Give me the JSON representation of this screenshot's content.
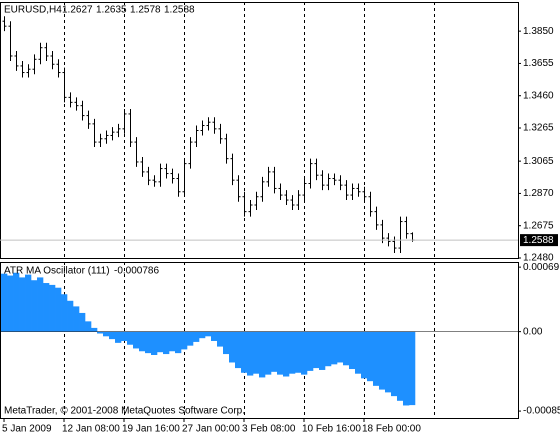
{
  "chart_data": [
    {
      "type": "ohlc",
      "title": "EURUSD,H4",
      "color": "#000000",
      "grid": true,
      "open": [
        1.391,
        1.388,
        1.37,
        1.364,
        1.36,
        1.362,
        1.368,
        1.375,
        1.37,
        1.365,
        1.36,
        1.345,
        1.342,
        1.34,
        1.334,
        1.329,
        1.318,
        1.32,
        1.322,
        1.324,
        1.326,
        1.335,
        1.318,
        1.306,
        1.3,
        1.295,
        1.294,
        1.302,
        1.299,
        1.296,
        1.288,
        1.305,
        1.318,
        1.325,
        1.328,
        1.33,
        1.326,
        1.32,
        1.308,
        1.295,
        1.285,
        1.276,
        1.28,
        1.285,
        1.294,
        1.3,
        1.29,
        1.286,
        1.283,
        1.28,
        1.286,
        1.293,
        1.305,
        1.298,
        1.292,
        1.296,
        1.295,
        1.292,
        1.286,
        1.29,
        1.288,
        1.285,
        1.276,
        1.268,
        1.26,
        1.258,
        1.254,
        1.27,
        1.2627
      ],
      "high": [
        1.394,
        1.391,
        1.373,
        1.367,
        1.365,
        1.371,
        1.378,
        1.378,
        1.373,
        1.368,
        1.363,
        1.348,
        1.345,
        1.343,
        1.337,
        1.332,
        1.323,
        1.325,
        1.327,
        1.329,
        1.338,
        1.338,
        1.321,
        1.309,
        1.303,
        1.298,
        1.305,
        1.305,
        1.302,
        1.299,
        1.308,
        1.321,
        1.328,
        1.331,
        1.333,
        1.333,
        1.329,
        1.323,
        1.311,
        1.298,
        1.288,
        1.283,
        1.288,
        1.297,
        1.303,
        1.303,
        1.293,
        1.289,
        1.286,
        1.289,
        1.296,
        1.308,
        1.308,
        1.301,
        1.299,
        1.299,
        1.298,
        1.295,
        1.293,
        1.293,
        1.291,
        1.288,
        1.279,
        1.271,
        1.263,
        1.261,
        1.273,
        1.273,
        1.2635
      ],
      "low": [
        1.385,
        1.367,
        1.361,
        1.357,
        1.357,
        1.359,
        1.365,
        1.367,
        1.362,
        1.357,
        1.342,
        1.339,
        1.337,
        1.331,
        1.326,
        1.315,
        1.315,
        1.317,
        1.319,
        1.321,
        1.323,
        1.315,
        1.303,
        1.297,
        1.292,
        1.291,
        1.291,
        1.296,
        1.293,
        1.285,
        1.285,
        1.302,
        1.315,
        1.322,
        1.325,
        1.323,
        1.317,
        1.305,
        1.292,
        1.282,
        1.273,
        1.273,
        1.277,
        1.282,
        1.291,
        1.287,
        1.283,
        1.28,
        1.277,
        1.277,
        1.283,
        1.29,
        1.295,
        1.289,
        1.289,
        1.292,
        1.289,
        1.283,
        1.283,
        1.285,
        1.282,
        1.273,
        1.265,
        1.257,
        1.255,
        1.251,
        1.251,
        1.2597,
        1.2578
      ],
      "close": [
        1.388,
        1.37,
        1.364,
        1.36,
        1.362,
        1.368,
        1.375,
        1.37,
        1.365,
        1.36,
        1.345,
        1.342,
        1.34,
        1.334,
        1.329,
        1.318,
        1.32,
        1.322,
        1.324,
        1.326,
        1.335,
        1.318,
        1.306,
        1.3,
        1.295,
        1.294,
        1.302,
        1.299,
        1.296,
        1.288,
        1.305,
        1.318,
        1.325,
        1.328,
        1.33,
        1.326,
        1.32,
        1.308,
        1.295,
        1.285,
        1.276,
        1.28,
        1.285,
        1.294,
        1.3,
        1.29,
        1.286,
        1.283,
        1.28,
        1.286,
        1.293,
        1.305,
        1.298,
        1.292,
        1.296,
        1.295,
        1.292,
        1.286,
        1.29,
        1.288,
        1.285,
        1.276,
        1.268,
        1.26,
        1.258,
        1.254,
        1.27,
        1.2627,
        1.2588
      ],
      "ylim": [
        1.248,
        1.4026
      ],
      "yticks": [
        {
          "value": 1.385,
          "label": "1.3850"
        },
        1.3655,
        {
          "value": 1.346,
          "label": "1.3460"
        },
        1.3265,
        1.3065,
        {
          "value": 1.287,
          "label": "1.2870"
        },
        1.2675,
        {
          "value": 1.248,
          "label": "1.2480"
        }
      ]
    },
    {
      "type": "bar",
      "title": "ATR MA Oscillator (111)",
      "color": "#1e90ff",
      "values": [
        0.00062,
        0.0006,
        0.00063,
        0.00058,
        0.00061,
        0.00055,
        0.00058,
        0.00052,
        0.0005,
        0.00047,
        0.0004,
        0.00033,
        0.00027,
        0.0002,
        0.00011,
        4e-05,
        -2e-05,
        -5e-05,
        -8e-05,
        -0.00012,
        -0.0001,
        -0.00014,
        -0.00018,
        -0.00021,
        -0.00023,
        -0.00025,
        -0.00022,
        -0.00024,
        -0.00021,
        -0.00023,
        -0.00019,
        -0.00015,
        -0.00011,
        -7e-05,
        -5e-05,
        -0.0001,
        -0.00016,
        -0.00024,
        -0.00033,
        -0.00039,
        -0.00044,
        -0.00047,
        -0.00045,
        -0.00049,
        -0.00046,
        -0.00043,
        -0.00046,
        -0.00048,
        -0.00045,
        -0.00044,
        -0.00046,
        -0.00042,
        -0.00039,
        -0.00041,
        -0.00037,
        -0.00035,
        -0.00033,
        -0.00036,
        -0.0004,
        -0.00045,
        -0.0005,
        -0.00053,
        -0.00058,
        -0.00062,
        -0.00065,
        -0.00069,
        -0.00074,
        -0.00079,
        -0.000786
      ],
      "ylim": [
        -0.000924,
        0.000745
      ],
      "yticks": [
        0.00069,
        {
          "value": 0,
          "label": "0.00"
        },
        -0.00085
      ],
      "xlim": [
        -0.67,
        85.67
      ],
      "xticks": [
        {
          "value": 0,
          "label": "5 Jan 2009"
        },
        {
          "value": 10,
          "label": "12 Jan 08:00"
        },
        {
          "value": 20,
          "label": "19 Jan 16:00"
        },
        {
          "value": 30,
          "label": "27 Jan 00:00"
        },
        {
          "value": 40,
          "label": "3 Feb 08:00"
        },
        {
          "value": 50,
          "label": "10 Feb 16:00"
        },
        {
          "value": 60,
          "label": "18 Feb 00:00"
        }
      ],
      "vgrid": [
        10,
        20,
        30,
        40,
        50,
        60,
        71.7
      ]
    }
  ],
  "footer": "MetaTrader, © 2001-2008 MetaQuotes Software Corp."
}
